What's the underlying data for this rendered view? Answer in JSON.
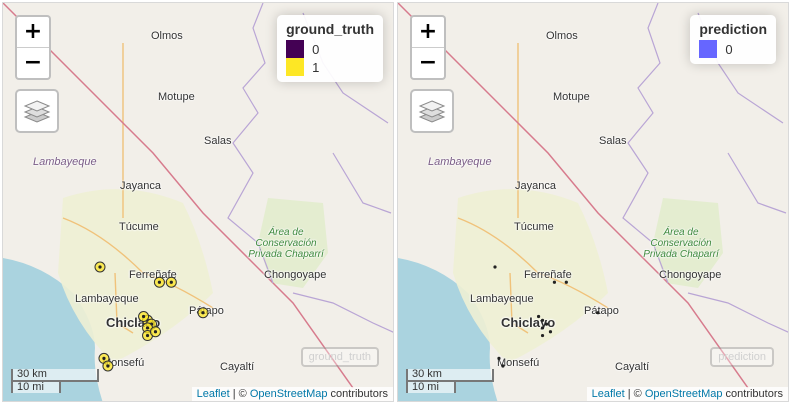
{
  "places": [
    {
      "id": "olmos",
      "name": "Olmos",
      "kind": "town"
    },
    {
      "id": "motupe",
      "name": "Motupe",
      "kind": "town"
    },
    {
      "id": "salas",
      "name": "Salas",
      "kind": "town"
    },
    {
      "id": "lambayeque-region",
      "name": "Lambayeque",
      "kind": "region"
    },
    {
      "id": "jayanca",
      "name": "Jayanca",
      "kind": "town"
    },
    {
      "id": "tucume",
      "name": "Túcume",
      "kind": "town"
    },
    {
      "id": "area-chaparri",
      "name": "Área de Conservación Privada Chaparrí",
      "kind": "park"
    },
    {
      "id": "ferrenafe",
      "name": "Ferreñafe",
      "kind": "town"
    },
    {
      "id": "chongoyape",
      "name": "Chongoyape",
      "kind": "town"
    },
    {
      "id": "lambayeque",
      "name": "Lambayeque",
      "kind": "town"
    },
    {
      "id": "chiclayo",
      "name": "Chiclayo",
      "kind": "city"
    },
    {
      "id": "patapo",
      "name": "Pátapo",
      "kind": "town"
    },
    {
      "id": "monsefu",
      "name": "Monsefú",
      "kind": "town"
    },
    {
      "id": "cayalti",
      "name": "Cayaltí",
      "kind": "town"
    }
  ],
  "panels": [
    {
      "id": "left",
      "zoom_in_label": "+",
      "zoom_out_label": "−",
      "layers_icon": "layers-icon",
      "legend": {
        "title": "ground_truth",
        "items": [
          {
            "label": "0",
            "color": "#440154"
          },
          {
            "label": "1",
            "color": "#fde725"
          }
        ]
      },
      "minimap_label": "ground_truth",
      "points": [
        {
          "lat": -6.63,
          "lon": -79.99,
          "value": 1
        },
        {
          "lat": -6.67,
          "lon": -79.84,
          "value": 1
        },
        {
          "lat": -6.67,
          "lon": -79.81,
          "value": 1
        },
        {
          "lat": -6.75,
          "lon": -79.73,
          "value": 1
        },
        {
          "lat": -6.77,
          "lon": -79.87,
          "value": 1
        },
        {
          "lat": -6.76,
          "lon": -79.88,
          "value": 1
        },
        {
          "lat": -6.78,
          "lon": -79.86,
          "value": 1
        },
        {
          "lat": -6.79,
          "lon": -79.87,
          "value": 1
        },
        {
          "lat": -6.81,
          "lon": -79.87,
          "value": 1
        },
        {
          "lat": -6.8,
          "lon": -79.85,
          "value": 1
        },
        {
          "lat": -6.87,
          "lon": -79.98,
          "value": 1
        },
        {
          "lat": -6.89,
          "lon": -79.97,
          "value": 1
        }
      ]
    },
    {
      "id": "right",
      "zoom_in_label": "+",
      "zoom_out_label": "−",
      "layers_icon": "layers-icon",
      "legend": {
        "title": "prediction",
        "items": [
          {
            "label": "0",
            "color": "#6666ff"
          }
        ]
      },
      "minimap_label": "prediction",
      "points": [
        {
          "lat": -6.63,
          "lon": -79.99,
          "value": 0
        },
        {
          "lat": -6.67,
          "lon": -79.84,
          "value": 0
        },
        {
          "lat": -6.67,
          "lon": -79.81,
          "value": 0
        },
        {
          "lat": -6.75,
          "lon": -79.73,
          "value": 0
        },
        {
          "lat": -6.77,
          "lon": -79.87,
          "value": 0
        },
        {
          "lat": -6.76,
          "lon": -79.88,
          "value": 0
        },
        {
          "lat": -6.78,
          "lon": -79.86,
          "value": 0
        },
        {
          "lat": -6.79,
          "lon": -79.87,
          "value": 0
        },
        {
          "lat": -6.81,
          "lon": -79.87,
          "value": 0
        },
        {
          "lat": -6.8,
          "lon": -79.85,
          "value": 0
        },
        {
          "lat": -6.87,
          "lon": -79.98,
          "value": 0
        },
        {
          "lat": -6.89,
          "lon": -79.97,
          "value": 0
        }
      ]
    }
  ],
  "scale": {
    "metric": "30 km",
    "imperial": "10 mi"
  },
  "attribution": {
    "leaflet": "Leaflet",
    "separator": " | © ",
    "osm": "OpenStreetMap",
    "suffix": " contributors"
  }
}
